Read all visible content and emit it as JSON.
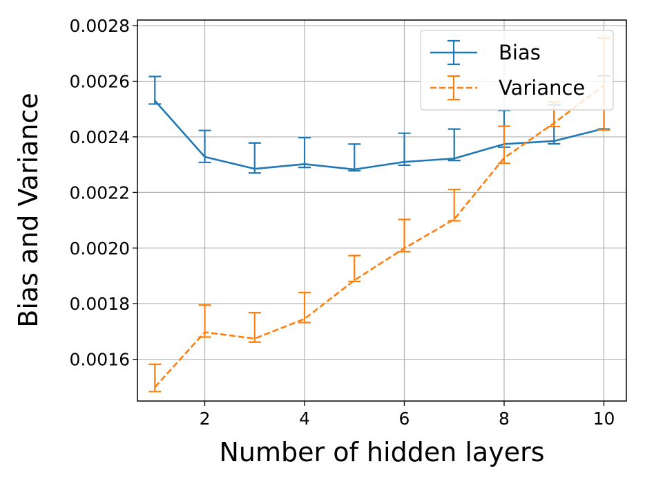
{
  "chart_data": {
    "type": "line",
    "title": "",
    "xlabel": "Number of hidden layers",
    "ylabel": "Bias and Variance",
    "xlim": [
      0.65,
      10.45
    ],
    "ylim": [
      0.00145,
      0.00282
    ],
    "xticks": [
      2,
      4,
      6,
      8,
      10
    ],
    "xtick_labels": [
      "2",
      "4",
      "6",
      "8",
      "10"
    ],
    "yticks": [
      0.0016,
      0.0018,
      0.002,
      0.0022,
      0.0024,
      0.0026,
      0.0028
    ],
    "ytick_labels": [
      "0.0016",
      "0.0018",
      "0.0020",
      "0.0022",
      "0.0024",
      "0.0026",
      "0.0028"
    ],
    "grid": true,
    "legend_position": "top-right",
    "x": [
      1,
      2,
      3,
      4,
      5,
      6,
      7,
      8,
      9,
      10
    ],
    "series": [
      {
        "name": "Bias",
        "color": "#1f77b4",
        "linestyle": "solid",
        "values": [
          0.00253,
          0.002328,
          0.002285,
          0.002302,
          0.002283,
          0.00231,
          0.002322,
          0.002374,
          0.002385,
          0.00243
        ],
        "error_low": [
          0.002518,
          0.002308,
          0.00227,
          0.00229,
          0.002278,
          0.002298,
          0.002315,
          0.002363,
          0.002375,
          0.002428
        ],
        "error_high": [
          0.002617,
          0.002423,
          0.002378,
          0.002397,
          0.002374,
          0.002413,
          0.002428,
          0.002495,
          0.002515,
          0.00262
        ]
      },
      {
        "name": "Variance",
        "color": "#ff7f0e",
        "linestyle": "dashed",
        "values": [
          0.0015,
          0.0016975,
          0.0016745,
          0.0017455,
          0.0018845,
          0.0019995,
          0.0021035,
          0.002324,
          0.0024495,
          0.002585
        ],
        "error_low": [
          0.001484,
          0.00168,
          0.001662,
          0.001732,
          0.00188,
          0.001987,
          0.002098,
          0.002305,
          0.002437,
          0.002425
        ],
        "error_high": [
          0.001582,
          0.001795,
          0.001768,
          0.00184,
          0.001973,
          0.002103,
          0.002211,
          0.002438,
          0.002526,
          0.002755
        ]
      }
    ]
  }
}
